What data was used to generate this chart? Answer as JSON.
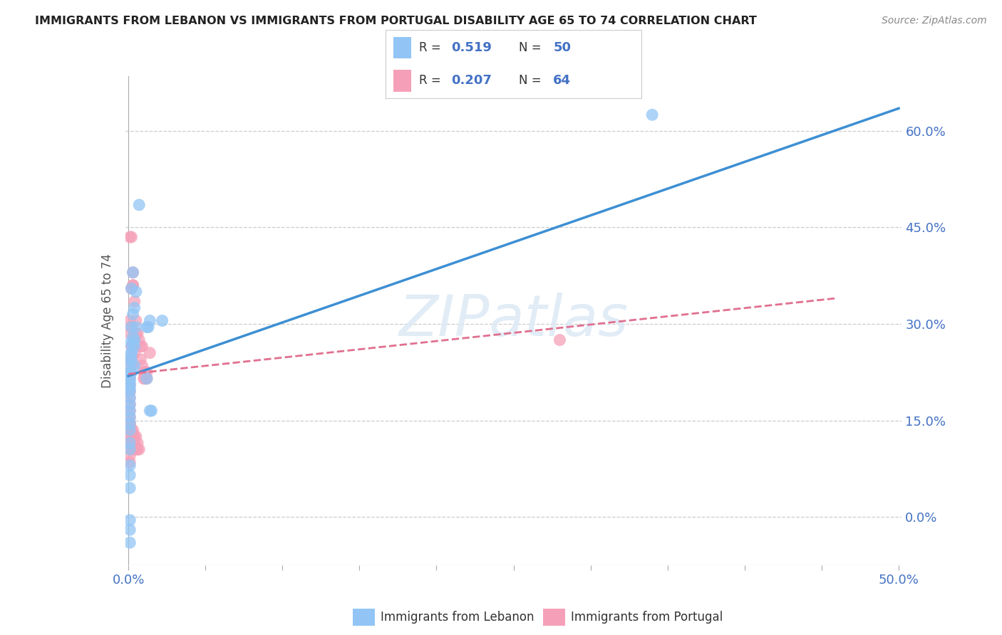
{
  "title": "IMMIGRANTS FROM LEBANON VS IMMIGRANTS FROM PORTUGAL DISABILITY AGE 65 TO 74 CORRELATION CHART",
  "source": "Source: ZipAtlas.com",
  "ylabel": "Disability Age 65 to 74",
  "y_ticks": [
    0.0,
    0.15,
    0.3,
    0.45,
    0.6
  ],
  "y_tick_labels": [
    "0.0%",
    "15.0%",
    "30.0%",
    "45.0%",
    "60.0%"
  ],
  "xlim": [
    -0.002,
    0.502
  ],
  "ylim": [
    -0.075,
    0.685
  ],
  "legend_label1": "Immigrants from Lebanon",
  "legend_label2": "Immigrants from Portugal",
  "r1": "0.519",
  "n1": "50",
  "r2": "0.207",
  "n2": "64",
  "color_blue": "#92c5f5",
  "color_pink": "#f5a0b8",
  "color_blue_line": "#3d8fd4",
  "color_pink_line": "#e07090",
  "color_blue_text": "#4472c4",
  "watermark": "ZIPatlas",
  "blue_line": [
    0.0,
    0.219,
    0.5,
    0.635
  ],
  "pink_line": [
    0.0,
    0.222,
    0.46,
    0.34
  ],
  "blue_points": [
    [
      0.001,
      0.245
    ],
    [
      0.002,
      0.355
    ],
    [
      0.003,
      0.38
    ],
    [
      0.004,
      0.325
    ],
    [
      0.005,
      0.35
    ],
    [
      0.003,
      0.315
    ],
    [
      0.004,
      0.275
    ],
    [
      0.005,
      0.295
    ],
    [
      0.002,
      0.255
    ],
    [
      0.003,
      0.27
    ],
    [
      0.004,
      0.235
    ],
    [
      0.002,
      0.295
    ],
    [
      0.003,
      0.28
    ],
    [
      0.004,
      0.265
    ],
    [
      0.002,
      0.255
    ],
    [
      0.001,
      0.27
    ],
    [
      0.002,
      0.245
    ],
    [
      0.001,
      0.235
    ],
    [
      0.002,
      0.225
    ],
    [
      0.001,
      0.225
    ],
    [
      0.001,
      0.225
    ],
    [
      0.001,
      0.22
    ],
    [
      0.001,
      0.215
    ],
    [
      0.001,
      0.21
    ],
    [
      0.001,
      0.205
    ],
    [
      0.001,
      0.2
    ],
    [
      0.001,
      0.195
    ],
    [
      0.001,
      0.185
    ],
    [
      0.001,
      0.175
    ],
    [
      0.001,
      0.165
    ],
    [
      0.001,
      0.155
    ],
    [
      0.001,
      0.145
    ],
    [
      0.001,
      0.135
    ],
    [
      0.001,
      0.115
    ],
    [
      0.001,
      0.105
    ],
    [
      0.001,
      0.08
    ],
    [
      0.001,
      0.065
    ],
    [
      0.001,
      0.045
    ],
    [
      0.001,
      -0.005
    ],
    [
      0.001,
      -0.02
    ],
    [
      0.001,
      -0.04
    ],
    [
      0.007,
      0.485
    ],
    [
      0.012,
      0.295
    ],
    [
      0.013,
      0.295
    ],
    [
      0.014,
      0.305
    ],
    [
      0.012,
      0.215
    ],
    [
      0.014,
      0.165
    ],
    [
      0.015,
      0.165
    ],
    [
      0.34,
      0.625
    ],
    [
      0.022,
      0.305
    ]
  ],
  "pink_points": [
    [
      0.001,
      0.285
    ],
    [
      0.001,
      0.305
    ],
    [
      0.002,
      0.295
    ],
    [
      0.002,
      0.355
    ],
    [
      0.003,
      0.38
    ],
    [
      0.003,
      0.36
    ],
    [
      0.004,
      0.275
    ],
    [
      0.004,
      0.255
    ],
    [
      0.002,
      0.265
    ],
    [
      0.002,
      0.245
    ],
    [
      0.002,
      0.235
    ],
    [
      0.001,
      0.245
    ],
    [
      0.001,
      0.435
    ],
    [
      0.002,
      0.435
    ],
    [
      0.003,
      0.36
    ],
    [
      0.004,
      0.335
    ],
    [
      0.005,
      0.305
    ],
    [
      0.005,
      0.285
    ],
    [
      0.006,
      0.285
    ],
    [
      0.007,
      0.275
    ],
    [
      0.008,
      0.265
    ],
    [
      0.009,
      0.265
    ],
    [
      0.008,
      0.245
    ],
    [
      0.009,
      0.235
    ],
    [
      0.01,
      0.225
    ],
    [
      0.011,
      0.225
    ],
    [
      0.012,
      0.225
    ],
    [
      0.014,
      0.255
    ],
    [
      0.01,
      0.215
    ],
    [
      0.011,
      0.215
    ],
    [
      0.012,
      0.215
    ],
    [
      0.001,
      0.225
    ],
    [
      0.001,
      0.215
    ],
    [
      0.001,
      0.205
    ],
    [
      0.001,
      0.195
    ],
    [
      0.001,
      0.185
    ],
    [
      0.001,
      0.175
    ],
    [
      0.001,
      0.165
    ],
    [
      0.001,
      0.155
    ],
    [
      0.001,
      0.145
    ],
    [
      0.001,
      0.135
    ],
    [
      0.001,
      0.125
    ],
    [
      0.001,
      0.115
    ],
    [
      0.001,
      0.105
    ],
    [
      0.001,
      0.095
    ],
    [
      0.001,
      0.085
    ],
    [
      0.001,
      0.145
    ],
    [
      0.001,
      0.135
    ],
    [
      0.002,
      0.135
    ],
    [
      0.002,
      0.125
    ],
    [
      0.002,
      0.115
    ],
    [
      0.003,
      0.115
    ],
    [
      0.003,
      0.105
    ],
    [
      0.004,
      0.105
    ],
    [
      0.003,
      0.135
    ],
    [
      0.003,
      0.125
    ],
    [
      0.004,
      0.125
    ],
    [
      0.004,
      0.115
    ],
    [
      0.005,
      0.125
    ],
    [
      0.005,
      0.105
    ],
    [
      0.006,
      0.115
    ],
    [
      0.006,
      0.105
    ],
    [
      0.007,
      0.105
    ],
    [
      0.28,
      0.275
    ]
  ]
}
